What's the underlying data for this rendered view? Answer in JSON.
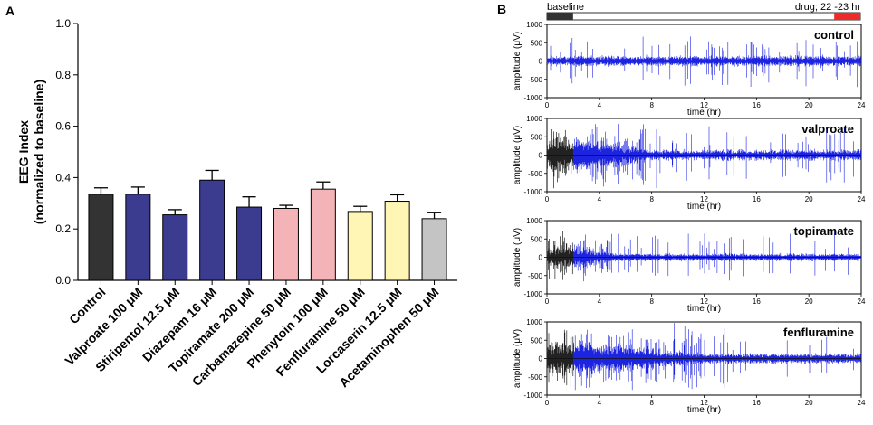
{
  "panel_a": {
    "letter": "A",
    "chart_data": {
      "type": "bar",
      "ylabel_line1": "EEG Index",
      "ylabel_line2": "(normalized to baseline)",
      "ylim": [
        0,
        1.0
      ],
      "yticks": [
        0.0,
        0.2,
        0.4,
        0.6,
        0.8,
        1.0
      ],
      "ytick_labels": [
        "0.0",
        "0.2",
        "0.4",
        "0.6",
        "0.8",
        "1.0"
      ],
      "categories": [
        "Control",
        "Valproate 100 μM",
        "Stiripentol 12.5 μM",
        "Diazepam 16 μM",
        "Topiramate 200 μM",
        "Carbamazepine 50 μM",
        "Phenytoin 100 μM",
        "Fenfluramine 50 μM",
        "Lorcaserin 12.5 μM",
        "Acetaminophen 50 μM"
      ],
      "values": [
        0.335,
        0.335,
        0.255,
        0.39,
        0.285,
        0.28,
        0.355,
        0.268,
        0.308,
        0.24
      ],
      "errors": [
        0.025,
        0.028,
        0.02,
        0.038,
        0.04,
        0.012,
        0.028,
        0.02,
        0.025,
        0.025
      ],
      "colors": [
        "#333333",
        "#3b3b8f",
        "#3b3b8f",
        "#3b3b8f",
        "#3b3b8f",
        "#f4b3b6",
        "#f4b3b6",
        "#fff5b5",
        "#fff5b5",
        "#c4c4c4"
      ]
    }
  },
  "panel_b": {
    "letter": "B",
    "timeline": {
      "baseline_label": "baseline",
      "drug_label": "drug; 22 -23 hr",
      "baseline_color": "#333333",
      "drug_end_color": "#ee2a2a"
    },
    "chart_data": [
      {
        "type": "line",
        "title": "control",
        "xlabel": "time (hr)",
        "ylabel": "amplitude (μV)",
        "xlim": [
          0,
          24
        ],
        "ylim": [
          -1000,
          1000
        ],
        "xticks": [
          0,
          4,
          8,
          12,
          16,
          20,
          24
        ],
        "yticks": [
          1000,
          500,
          0,
          -500,
          -1000
        ],
        "baseline_hr": 0,
        "base_amp": 110,
        "spike_amp": 800,
        "decay_hr": 0,
        "seed": 11
      },
      {
        "type": "line",
        "title": "valproate",
        "xlabel": "time (hr)",
        "ylabel": "amplitude (μV)",
        "xlim": [
          0,
          24
        ],
        "ylim": [
          -1000,
          1000
        ],
        "xticks": [
          0,
          4,
          8,
          12,
          16,
          20,
          24
        ],
        "yticks": [
          1000,
          500,
          0,
          -500,
          -1000
        ],
        "baseline_hr": 2,
        "base_amp": 120,
        "spike_amp": 950,
        "decay_hr": 8,
        "seed": 23
      },
      {
        "type": "line",
        "title": "topiramate",
        "xlabel": "time (hr)",
        "ylabel": "amplitude (μV)",
        "xlim": [
          0,
          24
        ],
        "ylim": [
          -1000,
          1000
        ],
        "xticks": [
          0,
          4,
          8,
          12,
          16,
          20,
          24
        ],
        "yticks": [
          1000,
          500,
          0,
          -500,
          -1000
        ],
        "baseline_hr": 2,
        "base_amp": 80,
        "spike_amp": 800,
        "decay_hr": 5,
        "seed": 37
      },
      {
        "type": "line",
        "title": "fenfluramine",
        "xlabel": "time (hr)",
        "ylabel": "amplitude (μV)",
        "xlim": [
          0,
          24
        ],
        "ylim": [
          -1000,
          1000
        ],
        "xticks": [
          0,
          4,
          8,
          12,
          16,
          20,
          24
        ],
        "yticks": [
          1000,
          500,
          0,
          -500,
          -1000
        ],
        "baseline_hr": 2,
        "base_amp": 110,
        "spike_amp": 1000,
        "decay_hr": 12,
        "seed": 51
      }
    ]
  }
}
